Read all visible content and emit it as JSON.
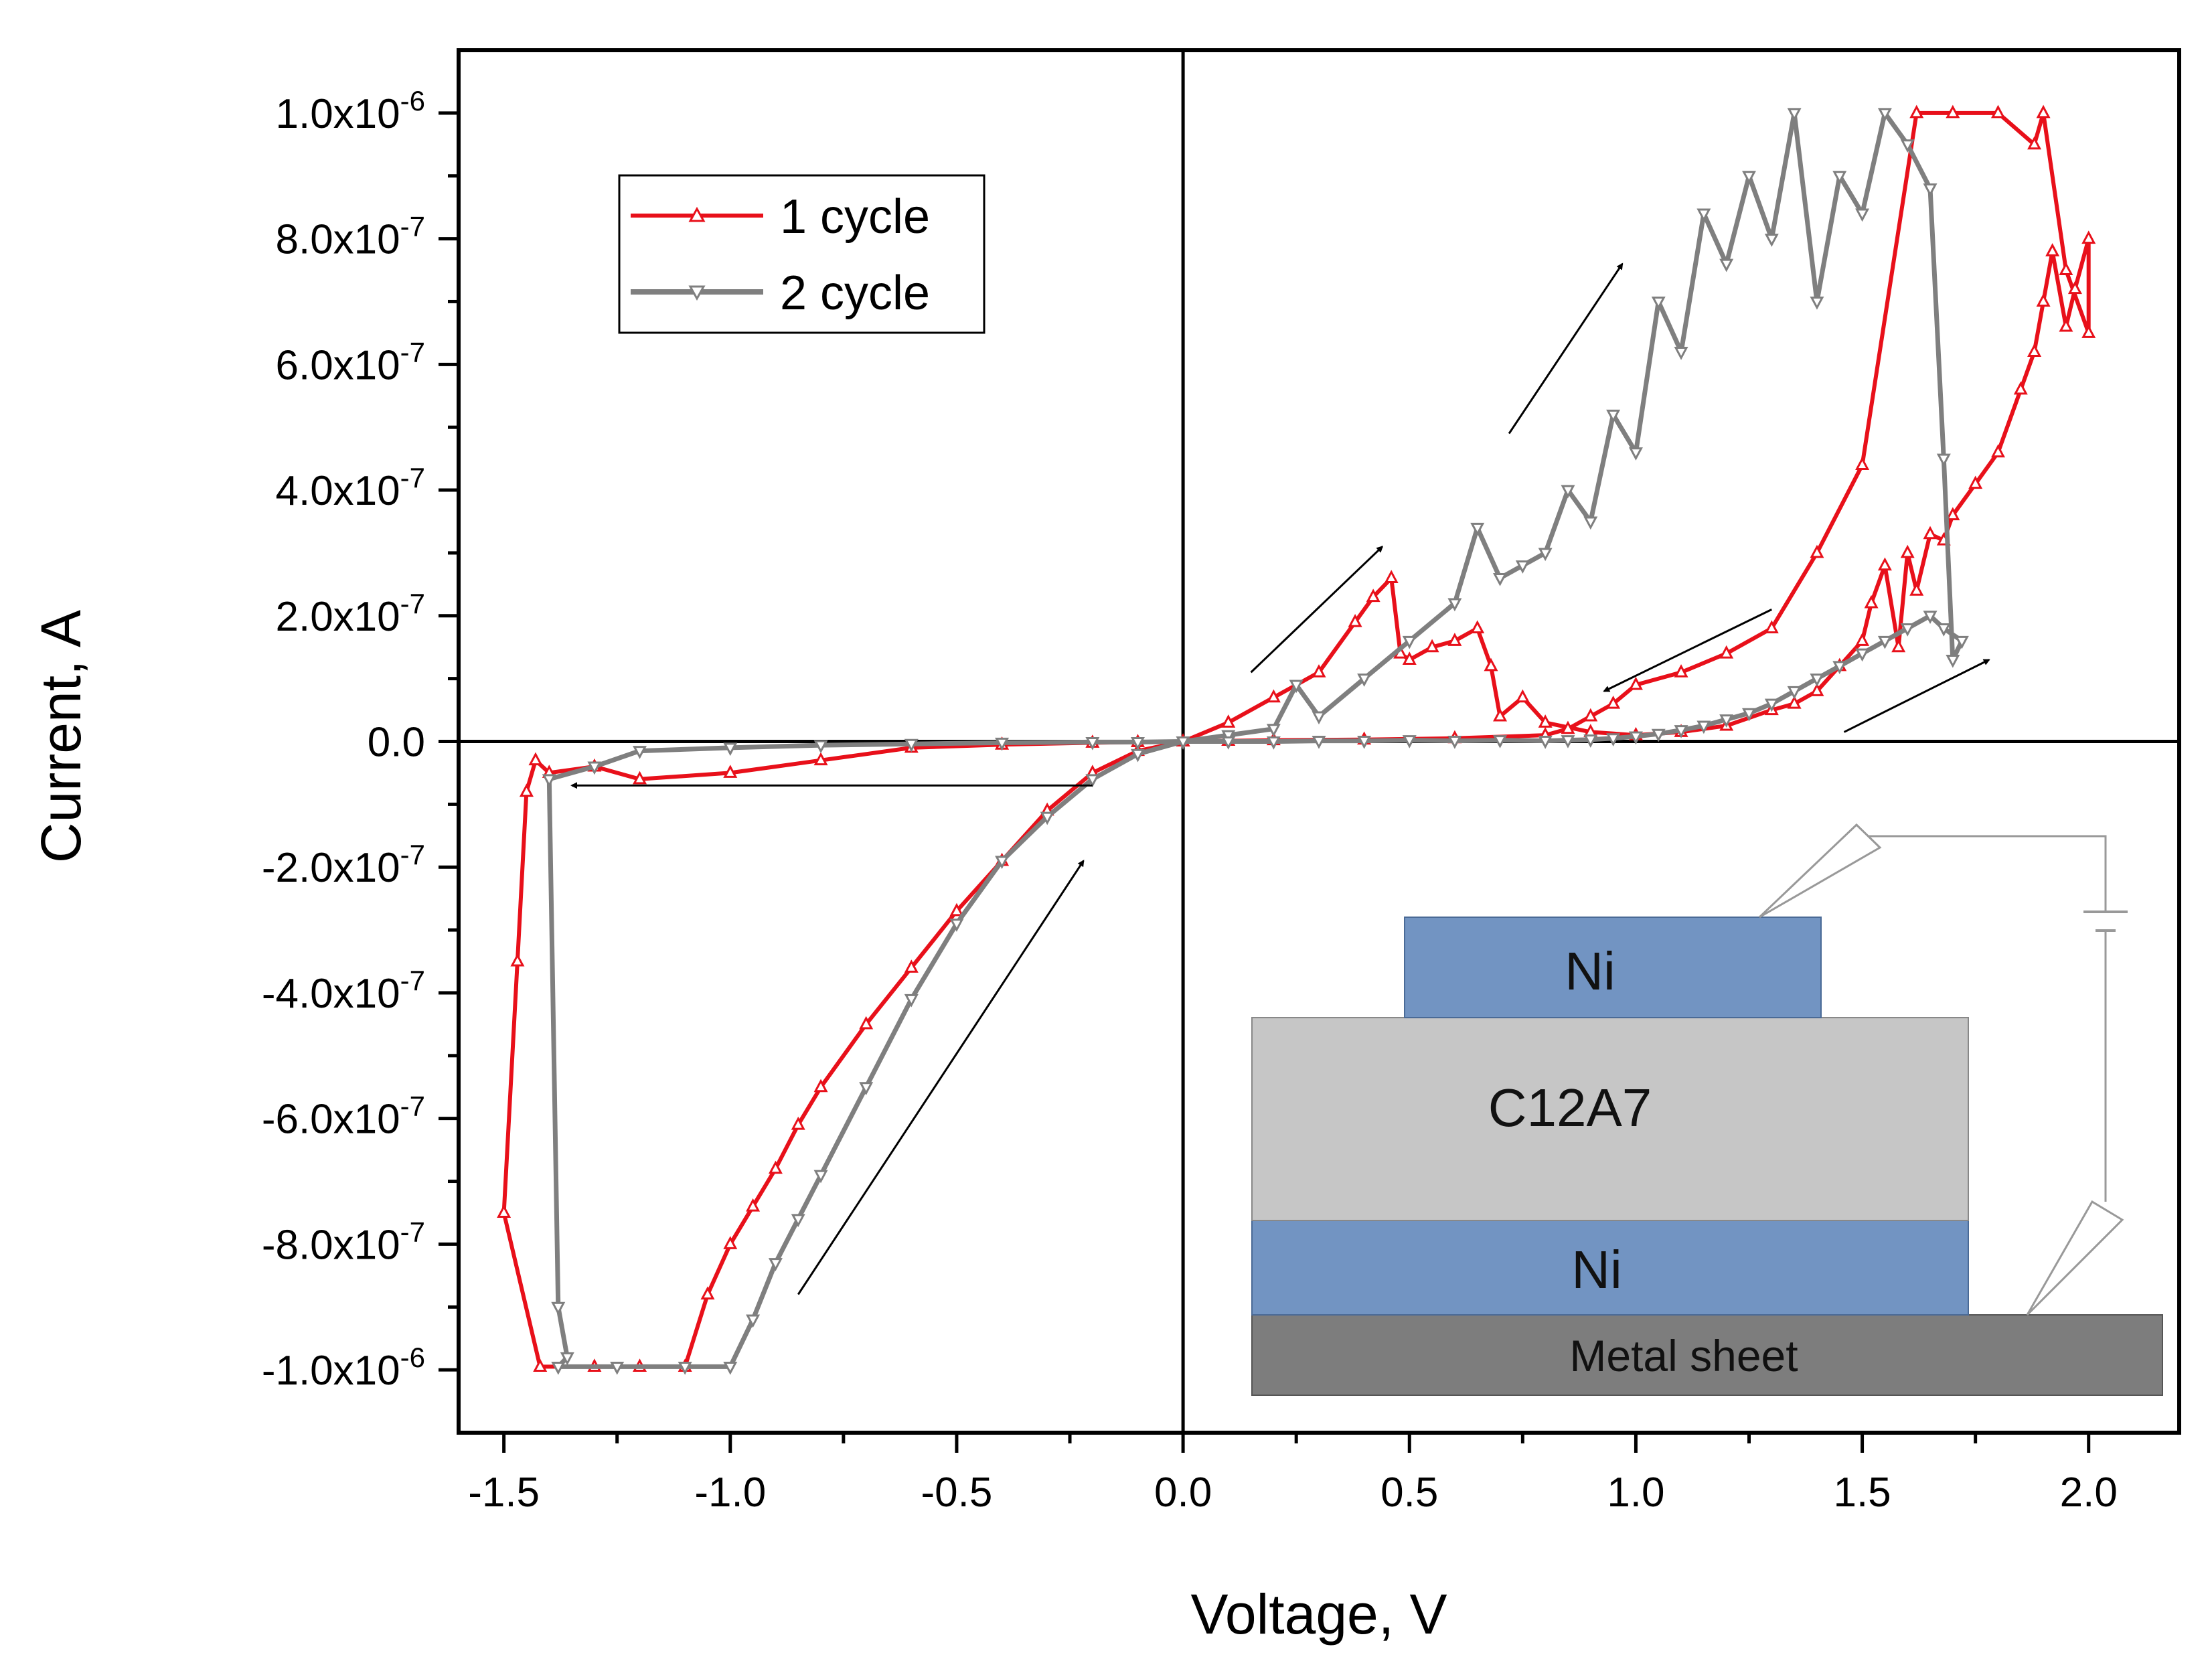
{
  "chart_data": {
    "type": "line",
    "title": "",
    "xlabel": "Voltage, V",
    "ylabel": "Current, A",
    "xlim": [
      -1.6,
      2.2
    ],
    "ylim": [
      -1.1e-06,
      1.1e-06
    ],
    "grid": false,
    "legend_position": "top-left",
    "x_ticks": [
      {
        "value": -1.5,
        "label": "-1.5"
      },
      {
        "value": -1.0,
        "label": "-1.0"
      },
      {
        "value": -0.5,
        "label": "-0.5"
      },
      {
        "value": 0.0,
        "label": "0.0"
      },
      {
        "value": 0.5,
        "label": "0.5"
      },
      {
        "value": 1.0,
        "label": "1.0"
      },
      {
        "value": 1.5,
        "label": "1.5"
      },
      {
        "value": 2.0,
        "label": "2.0"
      }
    ],
    "y_ticks": [
      {
        "value": 1e-06,
        "mant": "1.0x10",
        "exp": "-6"
      },
      {
        "value": 8e-07,
        "mant": "8.0x10",
        "exp": "-7"
      },
      {
        "value": 6e-07,
        "mant": "6.0x10",
        "exp": "-7"
      },
      {
        "value": 4e-07,
        "mant": "4.0x10",
        "exp": "-7"
      },
      {
        "value": 2e-07,
        "mant": "2.0x10",
        "exp": "-7"
      },
      {
        "value": 0.0,
        "mant": "0.0",
        "exp": ""
      },
      {
        "value": -2e-07,
        "mant": "-2.0x10",
        "exp": "-7"
      },
      {
        "value": -4e-07,
        "mant": "-4.0x10",
        "exp": "-7"
      },
      {
        "value": -6e-07,
        "mant": "-6.0x10",
        "exp": "-7"
      },
      {
        "value": -8e-07,
        "mant": "-8.0x10",
        "exp": "-7"
      },
      {
        "value": -1e-06,
        "mant": "-1.0x10",
        "exp": "-6"
      }
    ],
    "series": [
      {
        "name": "1 cycle",
        "color": "#e8101a",
        "marker": "triangle-up",
        "x": [
          0.0,
          0.1,
          0.2,
          0.3,
          0.38,
          0.42,
          0.46,
          0.48,
          0.5,
          0.55,
          0.6,
          0.65,
          0.68,
          0.7,
          0.75,
          0.8,
          0.9,
          1.0,
          1.1,
          1.2,
          1.3,
          1.35,
          1.4,
          1.45,
          1.5,
          1.52,
          1.55,
          1.58,
          1.6,
          1.62,
          1.65,
          1.68,
          1.7,
          1.75,
          1.8,
          1.85,
          1.88,
          1.9,
          1.92,
          1.95,
          1.97,
          2.0,
          2.0,
          1.95,
          1.9,
          1.88,
          1.8,
          1.7,
          1.62,
          1.5,
          1.4,
          1.3,
          1.2,
          1.1,
          1.0,
          0.95,
          0.9,
          0.85,
          0.8,
          0.6,
          0.4,
          0.2,
          0.1,
          0.0,
          -0.1,
          -0.2,
          -0.4,
          -0.6,
          -0.8,
          -1.0,
          -1.2,
          -1.3,
          -1.4,
          -1.43,
          -1.45,
          -1.47,
          -1.5,
          -1.42,
          -1.3,
          -1.2,
          -1.1,
          -1.05,
          -1.0,
          -0.95,
          -0.9,
          -0.85,
          -0.8,
          -0.7,
          -0.6,
          -0.5,
          -0.4,
          -0.3,
          -0.2,
          -0.1,
          0.0
        ],
        "y": [
          0.0,
          3e-08,
          7e-08,
          1.1e-07,
          1.9e-07,
          2.3e-07,
          2.6e-07,
          1.4e-07,
          1.3e-07,
          1.5e-07,
          1.6e-07,
          1.8e-07,
          1.2e-07,
          4e-08,
          7e-08,
          3e-08,
          1.5e-08,
          1e-08,
          1.5e-08,
          2.5e-08,
          5e-08,
          6e-08,
          8e-08,
          1.2e-07,
          1.6e-07,
          2.2e-07,
          2.8e-07,
          1.5e-07,
          3e-07,
          2.4e-07,
          3.3e-07,
          3.2e-07,
          3.6e-07,
          4.1e-07,
          4.6e-07,
          5.6e-07,
          6.2e-07,
          7e-07,
          7.8e-07,
          6.6e-07,
          7.2e-07,
          8e-07,
          6.5e-07,
          7.5e-07,
          1e-06,
          9.5e-07,
          1e-06,
          1e-06,
          1e-06,
          4.4e-07,
          3e-07,
          1.8e-07,
          1.4e-07,
          1.1e-07,
          9e-08,
          6e-08,
          4e-08,
          2e-08,
          1e-08,
          5e-09,
          3e-09,
          2e-09,
          1e-09,
          0.0,
          -1e-09,
          -2e-09,
          -5e-09,
          -1e-08,
          -3e-08,
          -5e-08,
          -6e-08,
          -4e-08,
          -5e-08,
          -3e-08,
          -8e-08,
          -3.5e-07,
          -7.5e-07,
          -9.95e-07,
          -9.95e-07,
          -9.95e-07,
          -9.95e-07,
          -8.8e-07,
          -8e-07,
          -7.4e-07,
          -6.8e-07,
          -6.1e-07,
          -5.5e-07,
          -4.5e-07,
          -3.6e-07,
          -2.7e-07,
          -1.9e-07,
          -1.1e-07,
          -5e-08,
          -1.5e-08,
          0.0
        ]
      },
      {
        "name": "2 cycle",
        "color": "#7f7f7f",
        "marker": "triangle-down",
        "x": [
          0.0,
          0.1,
          0.2,
          0.25,
          0.3,
          0.4,
          0.5,
          0.6,
          0.65,
          0.7,
          0.75,
          0.8,
          0.85,
          0.9,
          0.95,
          1.0,
          1.05,
          1.1,
          1.15,
          1.2,
          1.25,
          1.3,
          1.35,
          1.4,
          1.45,
          1.5,
          1.55,
          1.6,
          1.65,
          1.68,
          1.7,
          1.72,
          1.68,
          1.65,
          1.6,
          1.55,
          1.5,
          1.45,
          1.4,
          1.35,
          1.3,
          1.25,
          1.2,
          1.15,
          1.1,
          1.05,
          1.0,
          0.95,
          0.9,
          0.85,
          0.8,
          0.7,
          0.6,
          0.5,
          0.4,
          0.3,
          0.2,
          0.1,
          0.0,
          -0.1,
          -0.2,
          -0.4,
          -0.6,
          -0.8,
          -1.0,
          -1.2,
          -1.3,
          -1.4,
          -1.38,
          -1.36,
          -1.38,
          -1.25,
          -1.1,
          -1.0,
          -0.95,
          -0.9,
          -0.85,
          -0.8,
          -0.7,
          -0.6,
          -0.5,
          -0.4,
          -0.3,
          -0.2,
          -0.1,
          0.0
        ],
        "y": [
          0.0,
          1e-08,
          2e-08,
          9e-08,
          4e-08,
          1e-07,
          1.6e-07,
          2.2e-07,
          3.4e-07,
          2.6e-07,
          2.8e-07,
          3e-07,
          4e-07,
          3.5e-07,
          5.2e-07,
          4.6e-07,
          7e-07,
          6.2e-07,
          8.4e-07,
          7.6e-07,
          9e-07,
          8e-07,
          1e-06,
          7e-07,
          9e-07,
          8.4e-07,
          1e-06,
          9.5e-07,
          8.8e-07,
          4.5e-07,
          1.3e-07,
          1.6e-07,
          1.8e-07,
          2e-07,
          1.8e-07,
          1.6e-07,
          1.4e-07,
          1.2e-07,
          1e-07,
          8e-08,
          6e-08,
          4.5e-08,
          3.5e-08,
          2.5e-08,
          1.8e-08,
          1.2e-08,
          8e-09,
          5e-09,
          3e-09,
          2e-09,
          1e-09,
          2e-09,
          1e-09,
          2e-09,
          1e-09,
          1e-09,
          0.0,
          0.0,
          0.0,
          -1e-09,
          -1e-09,
          -2e-09,
          -4e-09,
          -6e-09,
          -1e-08,
          -1.5e-08,
          -4e-08,
          -6e-08,
          -9e-07,
          -9.8e-07,
          -9.95e-07,
          -9.95e-07,
          -9.95e-07,
          -9.95e-07,
          -9.2e-07,
          -8.3e-07,
          -7.6e-07,
          -6.9e-07,
          -5.5e-07,
          -4.1e-07,
          -2.9e-07,
          -1.9e-07,
          -1.2e-07,
          -6e-08,
          -2e-08,
          0.0
        ]
      }
    ],
    "annotations": {
      "arrows": [
        {
          "from": [
            -0.2,
            -7e-08
          ],
          "to": [
            -1.35,
            -7e-08
          ]
        },
        {
          "from": [
            -0.85,
            -8.8e-07
          ],
          "to": [
            -0.22,
            -1.9e-07
          ]
        },
        {
          "from": [
            0.15,
            1.1e-07
          ],
          "to": [
            0.44,
            3.1e-07
          ]
        },
        {
          "from": [
            0.72,
            4.9e-07
          ],
          "to": [
            0.97,
            7.6e-07
          ]
        },
        {
          "from": [
            1.3,
            2.1e-07
          ],
          "to": [
            0.93,
            8e-08
          ]
        },
        {
          "from": [
            1.46,
            1.5e-08
          ],
          "to": [
            1.78,
            1.3e-07
          ]
        }
      ],
      "inset": {
        "top_electrode": "Ni",
        "oxide": "C12A7",
        "bottom_electrode": "Ni",
        "substrate": "Metal sheet"
      }
    }
  }
}
